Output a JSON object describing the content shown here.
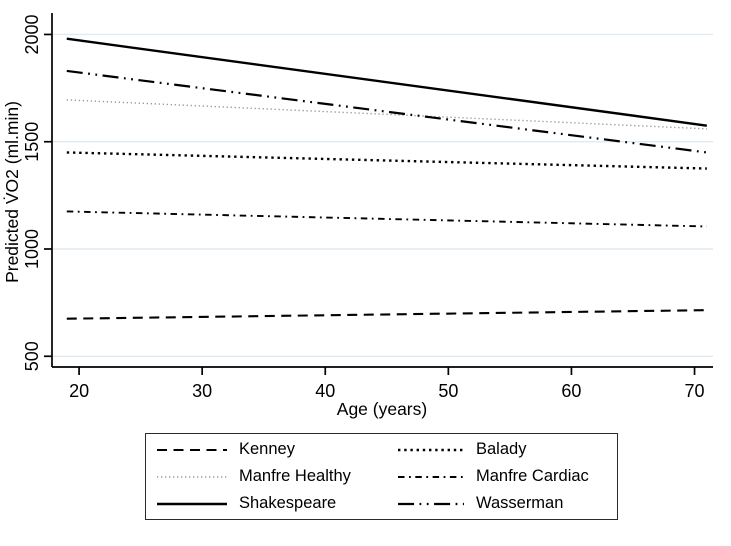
{
  "figure": {
    "background": "#ffffff",
    "axis_color": "#000000",
    "gridline_color": "#dfeaf2",
    "default_line_color": "#000000",
    "light_series_color": "#989898"
  },
  "chart_data": {
    "type": "line",
    "title": "",
    "xlabel": "Age (years)",
    "ylabel": "Predicted V̇O2 (ml.min)",
    "xlim": [
      17.8,
      71.5
    ],
    "ylim": [
      450,
      2100
    ],
    "xticks": [
      "20",
      "30",
      "40",
      "50",
      "60",
      "70"
    ],
    "xtick_values": [
      20,
      30,
      40,
      50,
      60,
      70
    ],
    "yticks": [
      "500",
      "1000",
      "1500",
      "2000"
    ],
    "ytick_values": [
      500,
      1000,
      1500,
      2000
    ],
    "grid": "horizontal-only",
    "legend_position": "bottom",
    "series": [
      {
        "name": "Kenney",
        "style": "long-dash",
        "color": "#000000",
        "x": [
          19,
          71
        ],
        "values": [
          675,
          715
        ]
      },
      {
        "name": "Balady",
        "style": "dot-bold",
        "color": "#000000",
        "x": [
          19,
          71
        ],
        "values": [
          1450,
          1375
        ]
      },
      {
        "name": "Manfre Healthy",
        "style": "dot-fine",
        "color": "#989898",
        "x": [
          19,
          71
        ],
        "values": [
          1695,
          1560
        ]
      },
      {
        "name": "Manfre Cardiac",
        "style": "dash-dot",
        "color": "#000000",
        "x": [
          19,
          71
        ],
        "values": [
          1175,
          1105
        ]
      },
      {
        "name": "Shakespeare",
        "style": "solid",
        "color": "#000000",
        "x": [
          19,
          71
        ],
        "values": [
          1980,
          1575
        ]
      },
      {
        "name": "Wasserman",
        "style": "dash-dot-dot",
        "color": "#000000",
        "x": [
          19,
          71
        ],
        "values": [
          1830,
          1450
        ]
      }
    ]
  }
}
